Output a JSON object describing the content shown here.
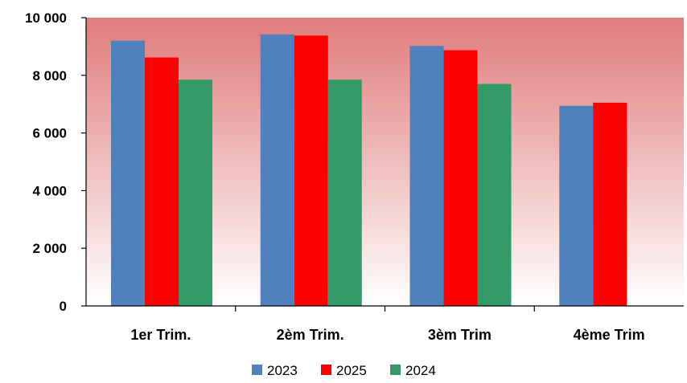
{
  "chart_data": {
    "type": "bar",
    "categories": [
      "1er Trim.",
      "2èm Trim.",
      "3èm Trim",
      "4ème Trim"
    ],
    "series": [
      {
        "name": "2023",
        "color": "#4F81BD",
        "values": [
          9200,
          9420,
          9020,
          6940
        ]
      },
      {
        "name": "2025",
        "color": "#FF0000",
        "values": [
          8620,
          9380,
          8870,
          7050
        ]
      },
      {
        "name": "2024",
        "color": "#339966",
        "values": [
          7850,
          7850,
          7700,
          null
        ]
      }
    ],
    "ylim": [
      0,
      10000
    ],
    "yticks": [
      0,
      2000,
      4000,
      6000,
      8000,
      10000
    ],
    "ytick_labels": [
      "0",
      "2 000",
      "4 000",
      "6 000",
      "8 000",
      "10 000"
    ],
    "legend_position": "bottom",
    "plot_background": {
      "top_color": "#E07B7B",
      "bottom_color": "#FFFFFF"
    },
    "grid": false
  }
}
